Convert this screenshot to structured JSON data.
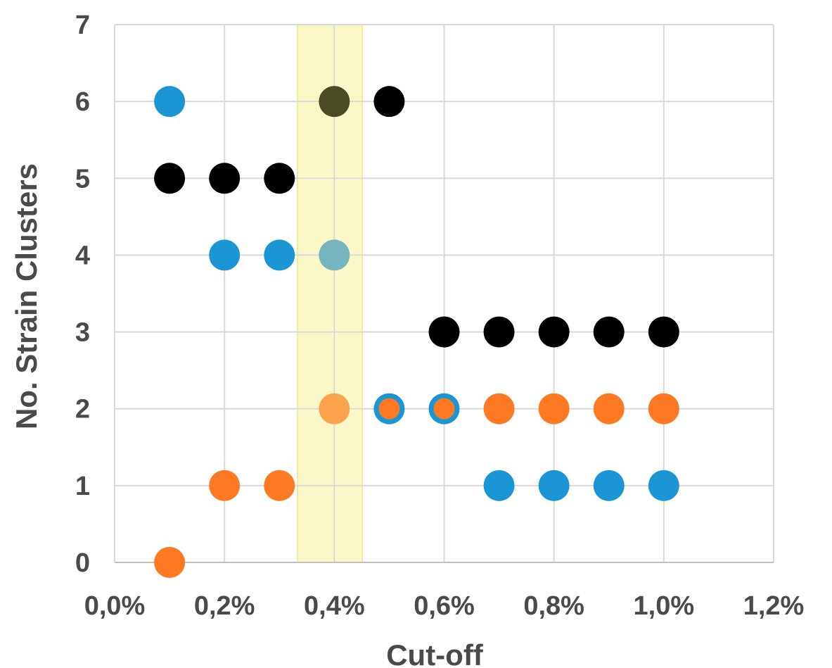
{
  "chart_data": {
    "type": "scatter",
    "title": "",
    "xlabel": "Cut-off",
    "ylabel": "No. Strain Clusters",
    "xlim": [
      0.0,
      1.2
    ],
    "ylim": [
      0,
      7
    ],
    "x_ticks": [
      0.0,
      0.2,
      0.4,
      0.6,
      0.8,
      1.0,
      1.2
    ],
    "x_tick_labels": [
      "0,0%",
      "0,2%",
      "0,4%",
      "0,6%",
      "0,8%",
      "1,0%",
      "1,2%"
    ],
    "y_ticks": [
      0,
      1,
      2,
      3,
      4,
      5,
      6,
      7
    ],
    "y_tick_labels": [
      "0",
      "1",
      "2",
      "3",
      "4",
      "5",
      "6",
      "7"
    ],
    "grid": true,
    "legend": "none",
    "highlight_band": {
      "x_from": 0.333,
      "x_to": 0.451,
      "color": "#fbf8c8"
    },
    "series": [
      {
        "color": "#000000",
        "points": [
          {
            "x": 0.1,
            "y": 5
          },
          {
            "x": 0.2,
            "y": 5
          },
          {
            "x": 0.3,
            "y": 5
          },
          {
            "x": 0.5,
            "y": 6
          },
          {
            "x": 0.6,
            "y": 3
          },
          {
            "x": 0.7,
            "y": 3
          },
          {
            "x": 0.8,
            "y": 3
          },
          {
            "x": 0.9,
            "y": 3
          },
          {
            "x": 1.0,
            "y": 3
          }
        ]
      },
      {
        "color": "#1a96d4",
        "points": [
          {
            "x": 0.1,
            "y": 6
          },
          {
            "x": 0.2,
            "y": 4
          },
          {
            "x": 0.3,
            "y": 4
          },
          {
            "x": 0.5,
            "y": 2
          },
          {
            "x": 0.6,
            "y": 2
          },
          {
            "x": 0.7,
            "y": 1
          },
          {
            "x": 0.8,
            "y": 1
          },
          {
            "x": 0.9,
            "y": 1
          },
          {
            "x": 1.0,
            "y": 1
          }
        ]
      },
      {
        "color": "#fd7a22",
        "points": [
          {
            "x": 0.1,
            "y": 0
          },
          {
            "x": 0.2,
            "y": 1
          },
          {
            "x": 0.3,
            "y": 1
          },
          {
            "x": 0.5,
            "y": 2,
            "size": "small"
          },
          {
            "x": 0.6,
            "y": 2,
            "size": "small"
          },
          {
            "x": 0.7,
            "y": 2
          },
          {
            "x": 0.8,
            "y": 2
          },
          {
            "x": 0.9,
            "y": 2
          },
          {
            "x": 1.0,
            "y": 2
          }
        ]
      },
      {
        "color": "#4a4a27",
        "points": [
          {
            "x": 0.4,
            "y": 6
          }
        ]
      },
      {
        "color": "#76b5bd",
        "points": [
          {
            "x": 0.4,
            "y": 4
          }
        ]
      },
      {
        "color": "#fca34e",
        "points": [
          {
            "x": 0.4,
            "y": 2
          }
        ]
      }
    ]
  }
}
